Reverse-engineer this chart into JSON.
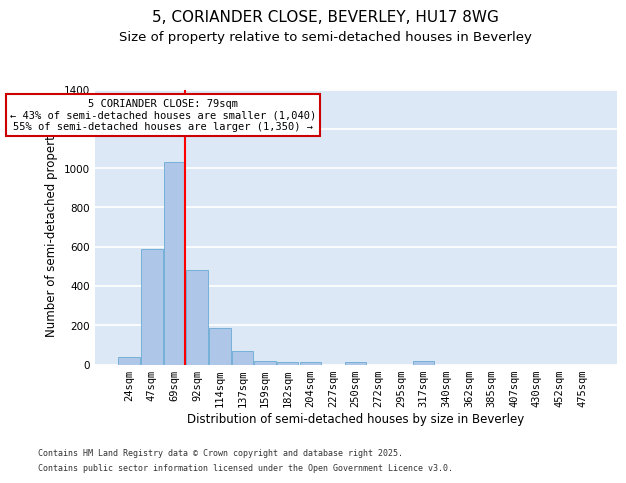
{
  "title_line1": "5, CORIANDER CLOSE, BEVERLEY, HU17 8WG",
  "title_line2": "Size of property relative to semi-detached houses in Beverley",
  "xlabel": "Distribution of semi-detached houses by size in Beverley",
  "ylabel": "Number of semi-detached properties",
  "categories": [
    "24sqm",
    "47sqm",
    "69sqm",
    "92sqm",
    "114sqm",
    "137sqm",
    "159sqm",
    "182sqm",
    "204sqm",
    "227sqm",
    "250sqm",
    "272sqm",
    "295sqm",
    "317sqm",
    "340sqm",
    "362sqm",
    "385sqm",
    "407sqm",
    "430sqm",
    "452sqm",
    "475sqm"
  ],
  "values": [
    40,
    590,
    1030,
    480,
    185,
    70,
    20,
    15,
    15,
    0,
    15,
    0,
    0,
    20,
    0,
    0,
    0,
    0,
    0,
    0,
    0
  ],
  "bar_color": "#aec6e8",
  "bar_edge_color": "#6aaad4",
  "background_color": "#dce8f5",
  "grid_color": "#ffffff",
  "red_line_bin": 2,
  "annotation_text": "5 CORIANDER CLOSE: 79sqm\n← 43% of semi-detached houses are smaller (1,040)\n55% of semi-detached houses are larger (1,350) →",
  "annotation_box_color": "#ffffff",
  "annotation_box_edge_color": "#cc0000",
  "ylim": [
    0,
    1400
  ],
  "yticks": [
    0,
    200,
    400,
    600,
    800,
    1000,
    1200,
    1400
  ],
  "footer_line1": "Contains HM Land Registry data © Crown copyright and database right 2025.",
  "footer_line2": "Contains public sector information licensed under the Open Government Licence v3.0.",
  "title_fontsize": 11,
  "subtitle_fontsize": 9.5,
  "tick_fontsize": 7.5,
  "axis_label_fontsize": 8.5,
  "annotation_fontsize": 7.5,
  "footer_fontsize": 6.0
}
